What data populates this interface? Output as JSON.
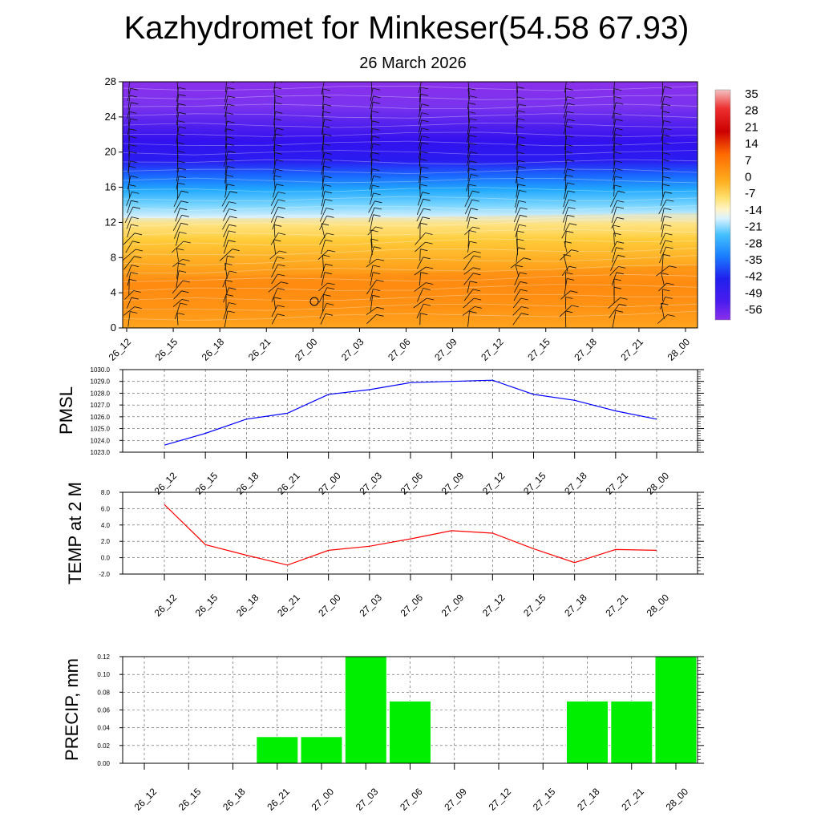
{
  "title": "Kazhydromet for Minkeser(54.58 67.93)",
  "subtitle": "26 March 2026",
  "time_labels": [
    "26_12",
    "26_15",
    "26_18",
    "26_21",
    "27_00",
    "27_03",
    "27_06",
    "27_09",
    "27_12",
    "27_15",
    "27_18",
    "27_21",
    "28_00"
  ],
  "colors": {
    "pmsl_line": "#0000ff",
    "temp_line": "#ff0000",
    "precip_bar": "#00ee00"
  },
  "chart_data": [
    {
      "type": "heatmap",
      "name": "upper-air cross-section",
      "x": [
        "26_12",
        "26_15",
        "26_18",
        "26_21",
        "27_00",
        "27_03",
        "27_06",
        "27_09",
        "27_12",
        "27_15",
        "27_18",
        "27_21",
        "28_00"
      ],
      "ylim": [
        0,
        28
      ],
      "yticks": [
        "0",
        "4",
        "8",
        "12",
        "16",
        "20",
        "24",
        "28"
      ],
      "colorbar": {
        "labels": [
          "35",
          "28",
          "21",
          "14",
          "7",
          "0",
          "-7",
          "-14",
          "-21",
          "-28",
          "-35",
          "-42",
          "-49",
          "-56"
        ],
        "range": [
          -60,
          38
        ]
      },
      "overlay": "wind barbs"
    },
    {
      "type": "line",
      "ylabel": "PMSL",
      "x": [
        "26_12",
        "26_15",
        "26_18",
        "26_21",
        "27_00",
        "27_03",
        "27_06",
        "27_09",
        "27_12",
        "27_15",
        "27_18",
        "27_21",
        "28_00"
      ],
      "values": [
        1023.6,
        1024.6,
        1025.8,
        1026.3,
        1027.9,
        1028.3,
        1028.9,
        1029.0,
        1029.1,
        1027.9,
        1027.4,
        1026.5,
        1025.8
      ],
      "ylim": [
        1023,
        1030
      ],
      "yticks": [
        "1023.0",
        "1024.0",
        "1025.0",
        "1026.0",
        "1027.0",
        "1028.0",
        "1029.0",
        "1030.0"
      ]
    },
    {
      "type": "line",
      "ylabel": "TEMP at 2 M",
      "x": [
        "26_12",
        "26_15",
        "26_18",
        "26_21",
        "27_00",
        "27_03",
        "27_06",
        "27_09",
        "27_12",
        "27_15",
        "27_18",
        "27_21",
        "28_00"
      ],
      "values": [
        6.5,
        1.6,
        0.3,
        -0.9,
        0.9,
        1.4,
        2.3,
        3.3,
        3.0,
        1.1,
        -0.6,
        1.0,
        0.9
      ],
      "ylim": [
        -2,
        8
      ],
      "yticks": [
        "-2.0",
        "0.0",
        "2.0",
        "4.0",
        "6.0",
        "8.0"
      ]
    },
    {
      "type": "bar",
      "ylabel": "PRECIP, mm",
      "categories": [
        "26_12",
        "26_15",
        "26_18",
        "26_21",
        "27_00",
        "27_03",
        "27_06",
        "27_09",
        "27_12",
        "27_15",
        "27_18",
        "27_21",
        "28_00"
      ],
      "values": [
        0,
        0,
        0,
        0.03,
        0.03,
        0.12,
        0.07,
        0,
        0,
        0,
        0.07,
        0.07,
        0.12
      ],
      "ylim": [
        0,
        0.12
      ],
      "yticks": [
        "0.00",
        "0.02",
        "0.04",
        "0.06",
        "0.08",
        "0.10",
        "0.12"
      ]
    }
  ]
}
